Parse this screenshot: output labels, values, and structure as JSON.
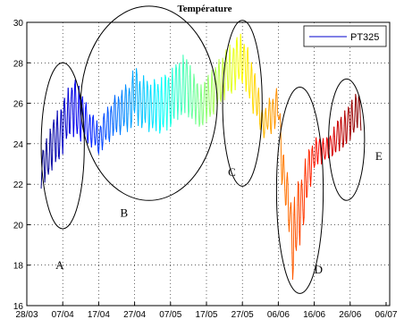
{
  "chart_data": {
    "type": "line",
    "title": "Température",
    "xlabel": "",
    "ylabel": "",
    "xlim": [
      "28/03",
      "07/07"
    ],
    "ylim": [
      16,
      30
    ],
    "x_ticks": [
      "28/03",
      "07/04",
      "17/04",
      "27/04",
      "07/05",
      "17/05",
      "27/05",
      "06/06",
      "16/06",
      "26/06",
      "06/07"
    ],
    "y_ticks": [
      16,
      18,
      20,
      22,
      24,
      26,
      28,
      30
    ],
    "grid": true,
    "legend": {
      "placement": "top-right",
      "entries": [
        "PT325"
      ]
    },
    "series": [
      {
        "name": "PT325",
        "colormap": "jet",
        "approximate_envelope": [
          {
            "x": "01/04",
            "y": [
              21.8,
              23.5
            ]
          },
          {
            "x": "05/04",
            "y": [
              23.0,
              25.5
            ]
          },
          {
            "x": "07/04",
            "y": [
              23.5,
              26.0
            ]
          },
          {
            "x": "09/04",
            "y": [
              24.5,
              27.0
            ]
          },
          {
            "x": "11/04",
            "y": [
              24.2,
              27.2
            ]
          },
          {
            "x": "14/04",
            "y": [
              24.0,
              25.8
            ]
          },
          {
            "x": "17/04",
            "y": [
              23.5,
              25.0
            ]
          },
          {
            "x": "21/04",
            "y": [
              24.3,
              26.3
            ]
          },
          {
            "x": "25/04",
            "y": [
              24.6,
              27.0
            ]
          },
          {
            "x": "27/04",
            "y": [
              25.0,
              27.8
            ]
          },
          {
            "x": "01/05",
            "y": [
              24.6,
              27.1
            ]
          },
          {
            "x": "05/05",
            "y": [
              24.5,
              27.3
            ]
          },
          {
            "x": "09/05",
            "y": [
              25.2,
              28.0
            ]
          },
          {
            "x": "11/05",
            "y": [
              25.5,
              28.5
            ]
          },
          {
            "x": "15/05",
            "y": [
              24.8,
              26.8
            ]
          },
          {
            "x": "18/05",
            "y": [
              25.2,
              27.5
            ]
          },
          {
            "x": "21/05",
            "y": [
              26.0,
              28.3
            ]
          },
          {
            "x": "24/05",
            "y": [
              26.5,
              29.0
            ]
          },
          {
            "x": "27/05",
            "y": [
              27.0,
              29.5
            ]
          },
          {
            "x": "30/05",
            "y": [
              25.5,
              28.0
            ]
          },
          {
            "x": "02/06",
            "y": [
              24.3,
              25.5
            ]
          },
          {
            "x": "04/06",
            "y": [
              24.5,
              26.5
            ]
          },
          {
            "x": "06/06",
            "y": [
              25.0,
              26.8
            ]
          },
          {
            "x": "07/06",
            "y": [
              22.0,
              24.3
            ]
          },
          {
            "x": "09/06",
            "y": [
              19.5,
              22.0
            ]
          },
          {
            "x": "10/06",
            "y": [
              17.3,
              21.0
            ]
          },
          {
            "x": "12/06",
            "y": [
              19.0,
              22.5
            ]
          },
          {
            "x": "14/06",
            "y": [
              21.0,
              23.5
            ]
          },
          {
            "x": "16/06",
            "y": [
              22.8,
              24.3
            ]
          },
          {
            "x": "18/06",
            "y": [
              23.0,
              24.3
            ]
          },
          {
            "x": "20/06",
            "y": [
              23.3,
              24.3
            ]
          },
          {
            "x": "22/06",
            "y": [
              23.5,
              25.0
            ]
          },
          {
            "x": "24/06",
            "y": [
              23.8,
              25.5
            ]
          },
          {
            "x": "26/06",
            "y": [
              24.2,
              26.0
            ]
          },
          {
            "x": "28/06",
            "y": [
              24.8,
              26.6
            ]
          },
          {
            "x": "29/06",
            "y": [
              24.6,
              26.2
            ]
          }
        ]
      }
    ],
    "annotations": [
      {
        "label": "A",
        "ellipse": {
          "cx": "07/04",
          "cy": 23.9,
          "rx_days": 6,
          "ry": 4.1
        },
        "label_pos": {
          "x": "05/04",
          "y": 17.8
        }
      },
      {
        "label": "B",
        "ellipse": {
          "cx": "01/05",
          "cy": 26.0,
          "rx_days": 19,
          "ry": 4.8
        },
        "label_pos": {
          "x": "23/04",
          "y": 20.4
        }
      },
      {
        "label": "C",
        "ellipse": {
          "cx": "27/05",
          "cy": 26.0,
          "rx_days": 5.5,
          "ry": 4.1
        },
        "label_pos": {
          "x": "23/05",
          "y": 22.4
        }
      },
      {
        "label": "D",
        "ellipse": {
          "cx": "12/06",
          "cy": 21.7,
          "rx_days": 6.5,
          "ry": 5.1
        },
        "label_pos": {
          "x": "16/06",
          "y": 17.6
        }
      },
      {
        "label": "E",
        "ellipse": {
          "cx": "25/06",
          "cy": 24.2,
          "rx_days": 5,
          "ry": 3.0
        },
        "label_pos": {
          "x": "03/07",
          "y": 23.2
        }
      }
    ]
  }
}
